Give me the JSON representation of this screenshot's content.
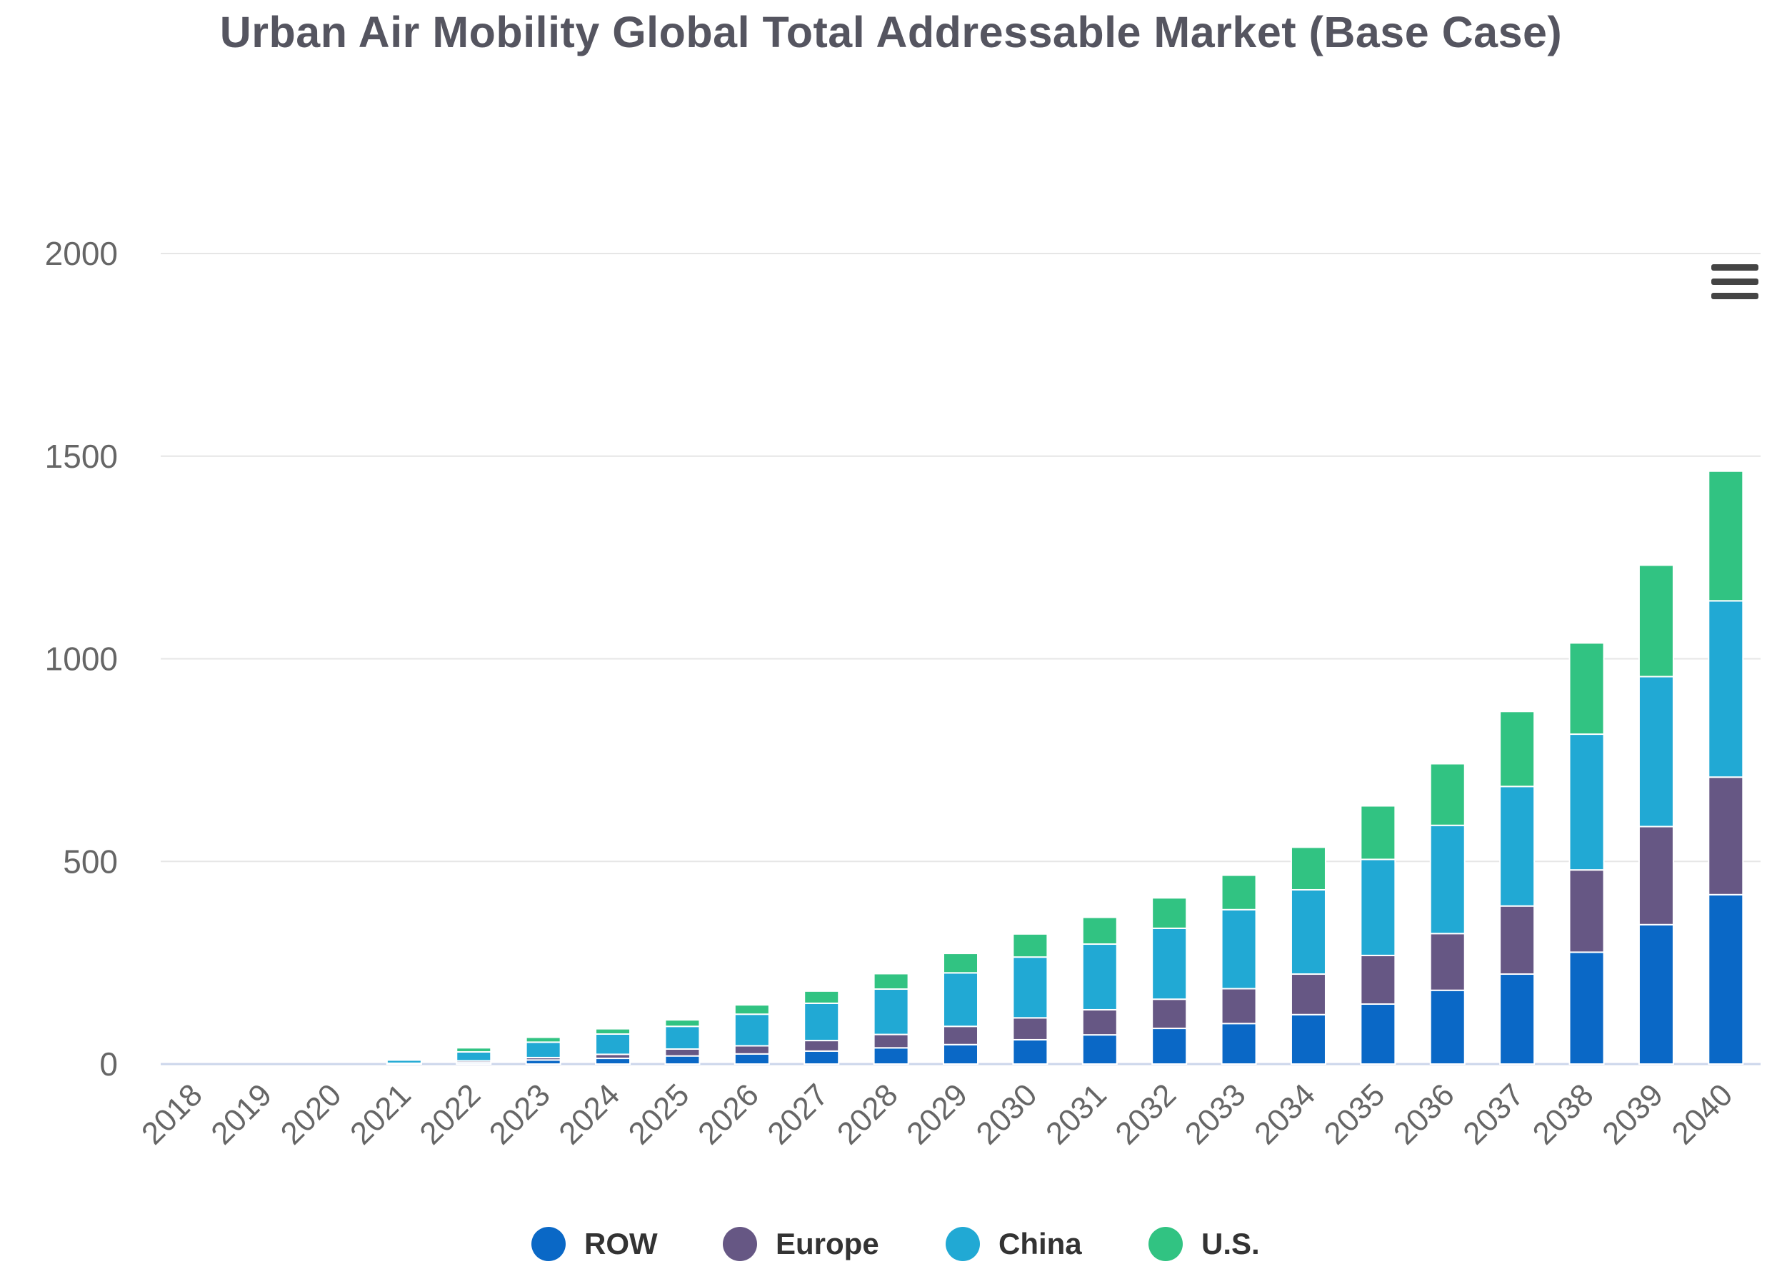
{
  "chart_data": {
    "type": "bar",
    "stacked": true,
    "title": "Urban Air Mobility Global Total Addressable Market (Base Case)",
    "categories": [
      "2018",
      "2019",
      "2020",
      "2021",
      "2022",
      "2023",
      "2024",
      "2025",
      "2026",
      "2027",
      "2028",
      "2029",
      "2030",
      "2031",
      "2032",
      "2033",
      "2034",
      "2035",
      "2036",
      "2037",
      "2038",
      "2039",
      "2040"
    ],
    "ylim": [
      0,
      2000
    ],
    "yticks": [
      0,
      500,
      1000,
      1500,
      2000
    ],
    "grid": true,
    "legend_position": "bottom",
    "series": [
      {
        "name": "ROW",
        "color": "#0a68c6",
        "values": [
          0,
          0,
          0,
          1,
          4,
          10,
          14,
          20,
          25,
          32,
          40,
          48,
          60,
          72,
          88,
          100,
          122,
          148,
          182,
          222,
          276,
          344,
          418
        ]
      },
      {
        "name": "Europe",
        "color": "#665784",
        "values": [
          0,
          0,
          0,
          1,
          4,
          6,
          10,
          17,
          20,
          26,
          33,
          45,
          54,
          62,
          72,
          86,
          100,
          120,
          140,
          168,
          203,
          242,
          290
        ]
      },
      {
        "name": "China",
        "color": "#21a9d4",
        "values": [
          0,
          0,
          0,
          8,
          22,
          38,
          50,
          56,
          78,
          92,
          112,
          132,
          150,
          162,
          175,
          195,
          208,
          237,
          267,
          295,
          335,
          370,
          435
        ]
      },
      {
        "name": "U.S.",
        "color": "#31c382",
        "values": [
          0,
          0,
          0,
          3,
          10,
          12,
          13,
          16,
          23,
          30,
          38,
          48,
          57,
          66,
          75,
          85,
          105,
          132,
          152,
          185,
          225,
          275,
          320
        ]
      }
    ]
  }
}
